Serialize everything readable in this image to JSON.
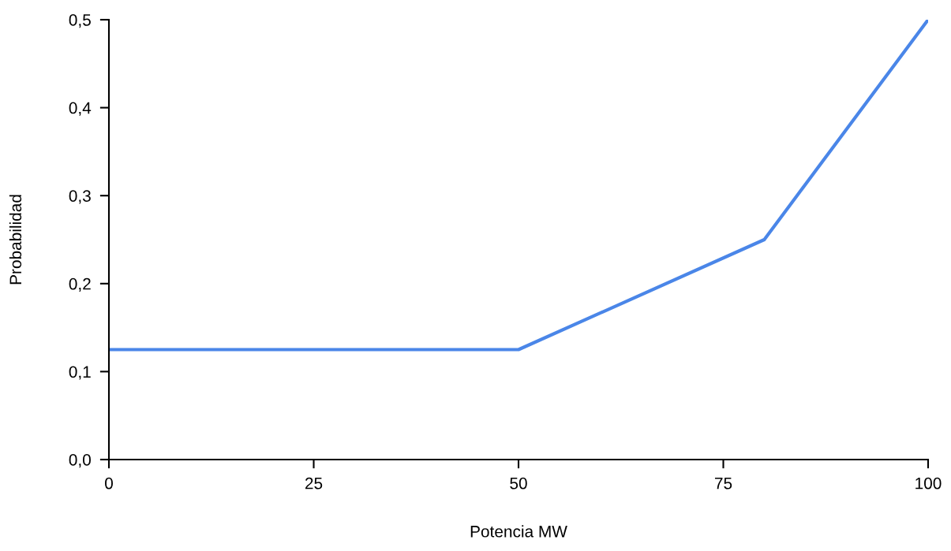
{
  "chart_data": {
    "type": "line",
    "xlabel": "Potencia MW",
    "ylabel": "Probabilidad",
    "x": [
      0,
      50,
      80,
      100
    ],
    "series": [
      {
        "color": "#4a86e8",
        "values": [
          0.125,
          0.125,
          0.25,
          0.5
        ]
      }
    ],
    "xlim": [
      0,
      100
    ],
    "xticks": [
      0,
      25,
      50,
      75,
      100
    ],
    "ylim": [
      0,
      0.5
    ],
    "yticks": [
      {
        "value": 0,
        "label": "0,0"
      },
      {
        "value": 0.1,
        "label": "0,1"
      },
      {
        "value": 0.2,
        "label": "0,2"
      },
      {
        "value": 0.3,
        "label": "0,3"
      },
      {
        "value": 0.4,
        "label": "0,4"
      },
      {
        "value": 0.5,
        "label": "0,5"
      }
    ],
    "grid": false,
    "marker": "none",
    "line_style": "solid"
  }
}
